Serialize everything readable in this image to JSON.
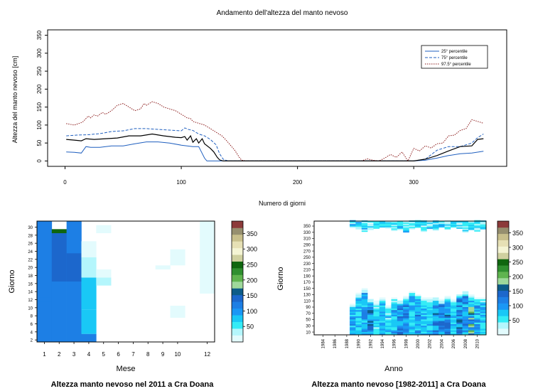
{
  "chart_data": [
    {
      "type": "line",
      "title": "Andamento dell'altezza del manto nevoso",
      "xlabel": "Numero di giorni",
      "ylabel": "Altezza del manto nevoso [cm]",
      "xlim": [
        -15,
        380
      ],
      "ylim": [
        -15,
        365
      ],
      "x_ticks": [
        0,
        100,
        200,
        300
      ],
      "y_ticks": [
        0,
        50,
        100,
        150,
        200,
        250,
        300,
        350
      ],
      "legend_position": "top-right",
      "series": [
        {
          "name": "25° percentile",
          "color": "#1f5fbf",
          "style": "solid",
          "x": [
            1,
            8,
            14,
            18,
            22,
            30,
            40,
            50,
            60,
            70,
            80,
            90,
            100,
            105,
            110,
            115,
            120,
            122,
            125,
            130,
            135,
            140,
            200,
            280,
            290,
            300,
            310,
            320,
            330,
            340,
            350,
            360
          ],
          "y": [
            25,
            24,
            22,
            40,
            38,
            38,
            42,
            42,
            48,
            53,
            53,
            50,
            44,
            42,
            40,
            40,
            8,
            0,
            0,
            0,
            0,
            0,
            0,
            0,
            0,
            0,
            2,
            8,
            15,
            20,
            22,
            27
          ]
        },
        {
          "name": "75° percentile",
          "color": "#1f5fbf",
          "style": "dashed",
          "x": [
            1,
            10,
            20,
            30,
            40,
            50,
            60,
            70,
            80,
            90,
            100,
            103,
            106,
            110,
            115,
            120,
            125,
            130,
            133,
            136,
            140,
            200,
            280,
            290,
            300,
            310,
            320,
            330,
            340,
            350,
            355,
            360
          ],
          "y": [
            70,
            72,
            73,
            76,
            82,
            84,
            90,
            90,
            88,
            86,
            84,
            92,
            88,
            85,
            75,
            70,
            60,
            45,
            20,
            5,
            0,
            0,
            0,
            0,
            0,
            5,
            30,
            40,
            40,
            50,
            65,
            75
          ]
        },
        {
          "name": "97.5° percentile",
          "color": "#8b1a1a",
          "style": "dotted",
          "x": [
            1,
            8,
            15,
            20,
            22,
            25,
            28,
            32,
            35,
            40,
            45,
            50,
            55,
            60,
            65,
            68,
            70,
            75,
            80,
            85,
            90,
            95,
            100,
            105,
            108,
            110,
            115,
            120,
            125,
            130,
            135,
            138,
            142,
            146,
            150,
            152,
            156,
            160,
            170,
            180,
            200,
            255,
            260,
            265,
            270,
            275,
            280,
            285,
            290,
            295,
            300,
            305,
            310,
            315,
            320,
            325,
            330,
            335,
            340,
            345,
            350,
            355,
            360
          ],
          "y": [
            104,
            100,
            108,
            125,
            120,
            128,
            125,
            135,
            130,
            140,
            155,
            160,
            150,
            140,
            145,
            160,
            155,
            165,
            160,
            150,
            145,
            140,
            130,
            120,
            118,
            110,
            105,
            100,
            90,
            80,
            70,
            60,
            45,
            30,
            10,
            2,
            0,
            0,
            0,
            0,
            0,
            0,
            6,
            2,
            0,
            8,
            18,
            10,
            25,
            0,
            35,
            28,
            42,
            36,
            48,
            50,
            70,
            72,
            85,
            90,
            115,
            110,
            105
          ]
        },
        {
          "name": "",
          "color": "#000000",
          "style": "solid",
          "x": [
            1,
            8,
            14,
            18,
            25,
            35,
            45,
            55,
            65,
            75,
            85,
            95,
            100,
            103,
            105,
            108,
            110,
            113,
            115,
            118,
            120,
            125,
            128,
            131,
            133,
            136,
            200,
            280,
            290,
            300,
            310,
            320,
            330,
            340,
            350,
            355,
            360
          ],
          "y": [
            60,
            58,
            56,
            62,
            60,
            62,
            64,
            70,
            70,
            75,
            70,
            66,
            65,
            68,
            58,
            70,
            52,
            62,
            50,
            62,
            48,
            35,
            25,
            10,
            3,
            0,
            0,
            0,
            0,
            0,
            5,
            15,
            28,
            40,
            42,
            60,
            62
          ]
        }
      ]
    },
    {
      "type": "heatmap",
      "title": "Altezza manto nevoso nel 2011 a Cra Doana",
      "xlabel": "Mese",
      "ylabel": "Giorno",
      "x_ticks": [
        "1",
        "2",
        "3",
        "4",
        "5",
        "6",
        "7",
        "8",
        "9",
        "10",
        "12"
      ],
      "y_ticks": [
        "2",
        "4",
        "6",
        "8",
        "10",
        "12",
        "14",
        "16",
        "18",
        "20",
        "22",
        "24",
        "26",
        "28",
        "30"
      ],
      "cells": [
        {
          "x": 1,
          "y0": 1,
          "y1": 31,
          "v": 110
        },
        {
          "x": 1,
          "y0": 11,
          "y1": 12,
          "v": 120
        },
        {
          "x": 2,
          "y0": 1,
          "y1": 28,
          "v": 115
        },
        {
          "x": 2,
          "y0": 16,
          "y1": 28,
          "v": 130
        },
        {
          "x": 2,
          "y0": 28,
          "y1": 29,
          "v": 250
        },
        {
          "x": 3,
          "y0": 1,
          "y1": 31,
          "v": 125
        },
        {
          "x": 3,
          "y0": 16,
          "y1": 23,
          "v": 145
        },
        {
          "x": 4,
          "y0": 1,
          "y1": 3,
          "v": 125
        },
        {
          "x": 4,
          "y0": 3,
          "y1": 9,
          "v": 80
        },
        {
          "x": 4,
          "y0": 9,
          "y1": 17,
          "v": 65
        },
        {
          "x": 4,
          "y0": 17,
          "y1": 22,
          "v": 40
        },
        {
          "x": 4,
          "y0": 22,
          "y1": 26,
          "v": 5
        },
        {
          "x": 5,
          "y0": 15,
          "y1": 17,
          "v": 40
        },
        {
          "x": 5,
          "y0": 17,
          "y1": 19,
          "v": 5
        },
        {
          "x": 5,
          "y0": 28,
          "y1": 30,
          "v": 3
        },
        {
          "x": 9,
          "y0": 19,
          "y1": 20,
          "v": 3
        },
        {
          "x": 10,
          "y0": 7,
          "y1": 10,
          "v": 3
        },
        {
          "x": 10,
          "y0": 20,
          "y1": 24,
          "v": 3
        },
        {
          "x": 12,
          "y0": 13,
          "y1": 31,
          "v": 3
        }
      ],
      "colorbar": {
        "ticks": [
          50,
          100,
          150,
          200,
          250,
          300,
          350
        ],
        "max": 390
      },
      "grid": false
    },
    {
      "type": "heatmap",
      "title": "Altezza manto nevoso [1982-2011] a Cra Doana",
      "xlabel": "Anno",
      "ylabel": "Giorno",
      "x_ticks": [
        "1984",
        "1986",
        "1988",
        "1990",
        "1992",
        "1994",
        "1996",
        "1998",
        "2000",
        "2002",
        "2004",
        "2006",
        "2008",
        "2010"
      ],
      "y_ticks": [
        "10",
        "30",
        "50",
        "70",
        "90",
        "110",
        "130",
        "150",
        "170",
        "190",
        "210",
        "230",
        "250",
        "270",
        "290",
        "310",
        "330",
        "350"
      ],
      "years": [
        1989,
        1990,
        1991,
        1992,
        1993,
        1994,
        1995,
        1996,
        1997,
        1998,
        1999,
        2000,
        2001,
        2002,
        2003,
        2004,
        2005,
        2006,
        2007,
        2008,
        2009,
        2010,
        2011
      ],
      "winter_end_day": [
        100,
        135,
        150,
        115,
        110,
        120,
        95,
        120,
        110,
        125,
        140,
        130,
        120,
        118,
        120,
        112,
        125,
        115,
        130,
        140,
        130,
        120,
        120
      ],
      "autumn_start_day": [
        345,
        340,
        332,
        338,
        342,
        346,
        343,
        335,
        338,
        330,
        340,
        345,
        332,
        338,
        336,
        346,
        340,
        346,
        342,
        330,
        338,
        333,
        340
      ],
      "colorbar": {
        "ticks": [
          50,
          100,
          150,
          200,
          250,
          300,
          350
        ],
        "max": 390
      },
      "grid": false
    }
  ]
}
